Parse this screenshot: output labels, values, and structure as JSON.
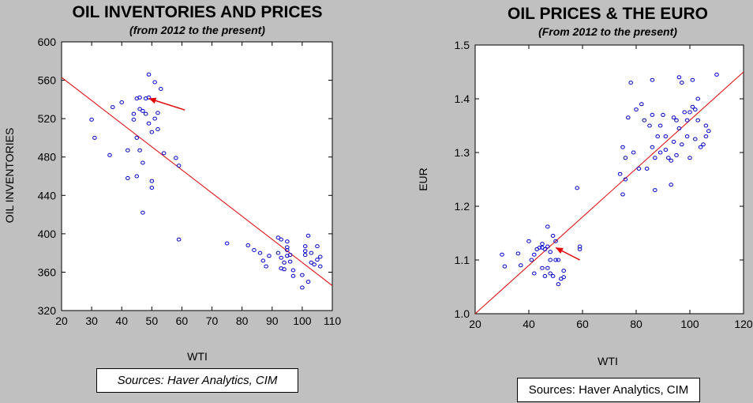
{
  "colors": {
    "background": "#c0c0c0",
    "plot_bg": "#ffffff",
    "point": "#0000cc",
    "fit_line": "#e00000",
    "arrow": "#e00000"
  },
  "chart_data": [
    {
      "type": "scatter",
      "title": "OIL INVENTORIES AND PRICES",
      "subtitle": "(from 2012 to the present)",
      "xlabel": "WTI",
      "ylabel": "OIL INVENTORIES",
      "xlim": [
        20,
        110
      ],
      "ylim": [
        320,
        600
      ],
      "xticks": [
        "20",
        "30",
        "40",
        "50",
        "60",
        "70",
        "80",
        "90",
        "100",
        "110"
      ],
      "yticks": [
        "320",
        "360",
        "400",
        "440",
        "480",
        "520",
        "560",
        "600"
      ],
      "grid": false,
      "source": "Sources:  Haver Analytics, CIM",
      "fit_line": [
        [
          20,
          563
        ],
        [
          110,
          346
        ]
      ],
      "arrow": {
        "from": [
          61,
          529
        ],
        "to": [
          49,
          541
        ]
      },
      "points": [
        [
          30,
          519
        ],
        [
          31,
          500
        ],
        [
          36,
          482
        ],
        [
          37,
          532
        ],
        [
          40,
          537
        ],
        [
          42,
          487
        ],
        [
          42,
          458
        ],
        [
          44,
          525
        ],
        [
          44,
          519
        ],
        [
          45,
          500
        ],
        [
          45,
          541
        ],
        [
          45,
          460
        ],
        [
          46,
          487
        ],
        [
          46,
          542
        ],
        [
          46,
          530
        ],
        [
          47,
          528
        ],
        [
          47,
          474
        ],
        [
          47,
          422
        ],
        [
          48,
          541
        ],
        [
          48,
          525
        ],
        [
          49,
          566
        ],
        [
          49,
          515
        ],
        [
          49,
          542
        ],
        [
          50,
          455
        ],
        [
          50,
          448
        ],
        [
          50,
          506
        ],
        [
          51,
          558
        ],
        [
          51,
          520
        ],
        [
          52,
          509
        ],
        [
          52,
          526
        ],
        [
          53,
          551
        ],
        [
          54,
          484
        ],
        [
          58,
          479
        ],
        [
          59,
          471
        ],
        [
          59,
          394
        ],
        [
          75,
          390
        ],
        [
          82,
          388
        ],
        [
          84,
          383
        ],
        [
          86,
          380
        ],
        [
          87,
          372
        ],
        [
          88,
          366
        ],
        [
          89,
          377
        ],
        [
          92,
          396
        ],
        [
          92,
          380
        ],
        [
          93,
          394
        ],
        [
          93,
          375
        ],
        [
          93,
          364
        ],
        [
          94,
          370
        ],
        [
          94,
          363
        ],
        [
          95,
          383
        ],
        [
          95,
          392
        ],
        [
          95,
          386
        ],
        [
          95,
          377
        ],
        [
          96,
          378
        ],
        [
          96,
          371
        ],
        [
          97,
          362
        ],
        [
          97,
          356
        ],
        [
          100,
          357
        ],
        [
          100,
          344
        ],
        [
          101,
          387
        ],
        [
          101,
          382
        ],
        [
          101,
          378
        ],
        [
          102,
          398
        ],
        [
          102,
          350
        ],
        [
          103,
          380
        ],
        [
          103,
          370
        ],
        [
          104,
          368
        ],
        [
          105,
          373
        ],
        [
          105,
          387
        ],
        [
          106,
          376
        ],
        [
          106,
          366
        ]
      ]
    },
    {
      "type": "scatter",
      "title": "OIL PRICES & THE EURO",
      "subtitle": "(From 2012 to the present)",
      "xlabel": "WTI",
      "ylabel": "EUR",
      "xlim": [
        20,
        120
      ],
      "ylim": [
        1.0,
        1.5
      ],
      "xticks": [
        "20",
        "40",
        "60",
        "80",
        "100",
        "120"
      ],
      "yticks": [
        "1.0",
        "1.1",
        "1.2",
        "1.3",
        "1.4",
        "1.5"
      ],
      "grid": false,
      "source": "Sources:  Haver Analytics, CIM",
      "fit_line": [
        [
          20,
          1.0
        ],
        [
          120,
          1.45
        ]
      ],
      "arrow": {
        "from": [
          59,
          1.1
        ],
        "to": [
          50,
          1.123
        ]
      },
      "points": [
        [
          30,
          1.11
        ],
        [
          31,
          1.088
        ],
        [
          36,
          1.112
        ],
        [
          37,
          1.09
        ],
        [
          40,
          1.135
        ],
        [
          41,
          1.1
        ],
        [
          42,
          1.075
        ],
        [
          42,
          1.11
        ],
        [
          43,
          1.12
        ],
        [
          44,
          1.123
        ],
        [
          45,
          1.123
        ],
        [
          45,
          1.13
        ],
        [
          45,
          1.085
        ],
        [
          46,
          1.07
        ],
        [
          46,
          1.12
        ],
        [
          47,
          1.085
        ],
        [
          47,
          1.125
        ],
        [
          47,
          1.162
        ],
        [
          48,
          1.115
        ],
        [
          48,
          1.075
        ],
        [
          48,
          1.1
        ],
        [
          49,
          1.145
        ],
        [
          49,
          1.07
        ],
        [
          50,
          1.1
        ],
        [
          50,
          1.135
        ],
        [
          51,
          1.1
        ],
        [
          51,
          1.055
        ],
        [
          52,
          1.065
        ],
        [
          53,
          1.068
        ],
        [
          53,
          1.08
        ],
        [
          58,
          1.234
        ],
        [
          59,
          1.12
        ],
        [
          59,
          1.125
        ],
        [
          74,
          1.26
        ],
        [
          75,
          1.222
        ],
        [
          75,
          1.31
        ],
        [
          76,
          1.25
        ],
        [
          76,
          1.29
        ],
        [
          77,
          1.365
        ],
        [
          78,
          1.43
        ],
        [
          79,
          1.3
        ],
        [
          80,
          1.38
        ],
        [
          81,
          1.27
        ],
        [
          82,
          1.39
        ],
        [
          83,
          1.36
        ],
        [
          84,
          1.27
        ],
        [
          85,
          1.35
        ],
        [
          86,
          1.435
        ],
        [
          86,
          1.37
        ],
        [
          86,
          1.31
        ],
        [
          87,
          1.23
        ],
        [
          87,
          1.29
        ],
        [
          88,
          1.33
        ],
        [
          89,
          1.35
        ],
        [
          89,
          1.3
        ],
        [
          90,
          1.37
        ],
        [
          91,
          1.305
        ],
        [
          91,
          1.33
        ],
        [
          92,
          1.29
        ],
        [
          93,
          1.285
        ],
        [
          93,
          1.24
        ],
        [
          94,
          1.365
        ],
        [
          94,
          1.32
        ],
        [
          95,
          1.36
        ],
        [
          95,
          1.295
        ],
        [
          96,
          1.44
        ],
        [
          96,
          1.345
        ],
        [
          97,
          1.43
        ],
        [
          97,
          1.315
        ],
        [
          98,
          1.375
        ],
        [
          99,
          1.36
        ],
        [
          99,
          1.33
        ],
        [
          100,
          1.29
        ],
        [
          100,
          1.375
        ],
        [
          101,
          1.435
        ],
        [
          101,
          1.385
        ],
        [
          102,
          1.325
        ],
        [
          102,
          1.38
        ],
        [
          103,
          1.4
        ],
        [
          103,
          1.36
        ],
        [
          104,
          1.31
        ],
        [
          105,
          1.315
        ],
        [
          106,
          1.35
        ],
        [
          106,
          1.33
        ],
        [
          107,
          1.34
        ],
        [
          110,
          1.445
        ]
      ]
    }
  ]
}
